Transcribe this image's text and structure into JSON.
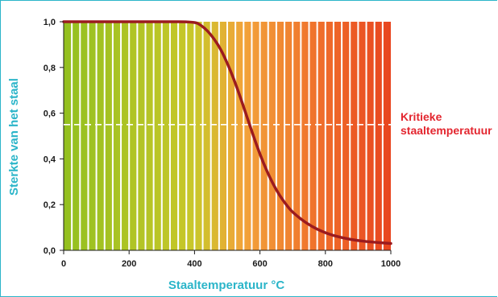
{
  "chart_data": {
    "type": "line",
    "xlabel": "Staaltemperatuur °C",
    "ylabel": "Sterkte van het staal",
    "xlim": [
      0,
      1000
    ],
    "ylim": [
      0,
      1
    ],
    "x_ticks": [
      "0",
      "200",
      "400",
      "600",
      "800",
      "1000"
    ],
    "y_ticks": [
      "0,0",
      "0,2",
      "0,4",
      "0,6",
      "0,8",
      "1,0"
    ],
    "series": [
      {
        "x": [
          0,
          100,
          200,
          300,
          400,
          420,
          440,
          460,
          480,
          500,
          520,
          540,
          560,
          580,
          600,
          620,
          640,
          660,
          680,
          700,
          750,
          800,
          850,
          900,
          950,
          1000
        ],
        "y": [
          1.0,
          1.0,
          1.0,
          1.0,
          1.0,
          0.985,
          0.96,
          0.925,
          0.88,
          0.82,
          0.75,
          0.67,
          0.585,
          0.5,
          0.42,
          0.35,
          0.29,
          0.24,
          0.2,
          0.165,
          0.11,
          0.075,
          0.055,
          0.042,
          0.035,
          0.03
        ]
      }
    ],
    "reference_line": {
      "y": 0.55,
      "label_lines": [
        "Kritieke",
        "staaltemperatuur"
      ]
    },
    "background_gradient": [
      "#93c01f",
      "#c9c72a",
      "#f2a33a",
      "#ef6b2a",
      "#e8451f"
    ],
    "colors": {
      "curve": "#9b1b1f",
      "axis_title": "#2bb5c9",
      "annotation": "#e3262f",
      "reference": "#ffffff"
    },
    "grid": false
  }
}
